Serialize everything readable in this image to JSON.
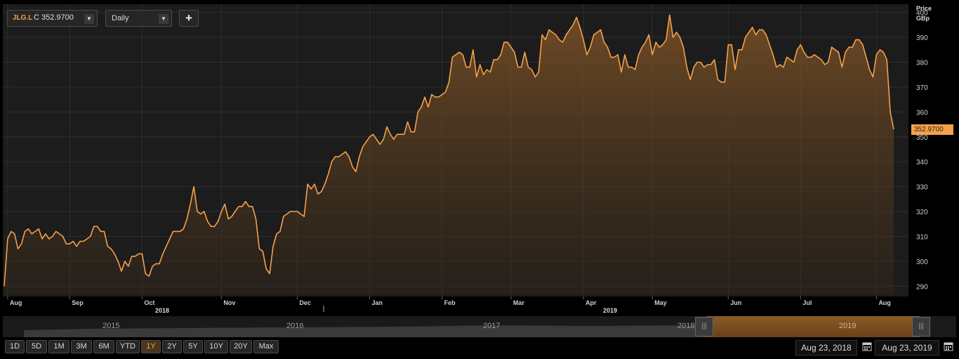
{
  "toolbar": {
    "symbol": "JLG.L",
    "close_prefix": "C",
    "close_value": "352.9700",
    "interval": "Daily",
    "add_label": "+"
  },
  "axis": {
    "price_label": "Price",
    "unit_label": "GBp",
    "year_labels": [
      "2018",
      "2019"
    ]
  },
  "last_price_tag": "352.9700",
  "colors": {
    "line": "#f5a14a",
    "panel": "#1c1c1c",
    "accent": "#f5a14a"
  },
  "navigator": {
    "years": [
      "2015",
      "2016",
      "2017",
      "2018",
      "2019"
    ]
  },
  "ranges": [
    "1D",
    "5D",
    "1M",
    "3M",
    "6M",
    "YTD",
    "1Y",
    "2Y",
    "5Y",
    "10Y",
    "20Y",
    "Max"
  ],
  "active_range": "1Y",
  "dates": {
    "start": "Aug 23, 2018",
    "end": "Aug 23, 2019"
  },
  "chart_data": {
    "type": "area",
    "title": "",
    "xlabel": "",
    "ylabel": "Price GBp",
    "x_tick_labels": [
      "Aug",
      "Sep",
      "Oct",
      "Nov",
      "Dec",
      "Jan",
      "Feb",
      "Mar",
      "Apr",
      "May",
      "Jun",
      "Jul",
      "Aug"
    ],
    "y_ticks": [
      290,
      300,
      310,
      320,
      330,
      340,
      350,
      360,
      370,
      380,
      390,
      400
    ],
    "ylim": [
      286.7,
      403
    ],
    "grid": true,
    "last_value": 352.97,
    "series": [
      {
        "values": [
          290,
          309,
          312,
          311,
          305,
          307,
          312,
          313,
          311,
          312,
          313,
          309,
          311,
          309,
          310,
          312,
          311,
          310,
          307,
          307,
          308,
          306,
          308,
          308,
          309,
          310,
          314,
          314,
          312,
          312,
          306,
          305,
          303,
          300,
          296,
          300,
          298,
          302,
          302,
          303,
          303,
          295,
          294,
          298,
          299,
          299,
          303,
          306,
          309,
          312,
          312,
          312,
          313,
          317,
          323,
          330,
          320,
          319,
          320,
          316,
          314,
          314,
          316,
          320,
          323,
          317,
          318,
          320,
          322,
          322,
          324,
          322,
          322,
          317,
          305,
          304,
          297,
          295,
          306,
          311,
          312,
          318,
          319,
          320,
          320,
          320,
          319,
          318,
          331,
          329,
          331,
          327,
          328,
          331,
          335,
          340,
          342,
          342,
          343,
          344,
          342,
          338,
          336,
          342,
          346,
          348,
          350,
          351,
          349,
          347,
          349,
          354,
          351,
          349,
          351,
          351,
          351,
          356,
          352,
          352,
          360,
          362,
          366,
          362,
          367,
          366,
          366,
          367,
          368,
          372,
          382,
          383,
          384,
          383,
          378,
          378,
          385,
          374,
          379,
          375,
          377,
          376,
          381,
          381,
          383,
          388,
          388,
          386,
          384,
          378,
          378,
          384,
          378,
          377,
          374,
          376,
          391,
          389,
          393,
          392,
          391,
          389,
          388,
          391,
          393,
          395,
          398,
          394,
          389,
          383,
          386,
          391,
          392,
          393,
          388,
          386,
          382,
          382,
          383,
          376,
          383,
          378,
          378,
          377,
          383,
          386,
          388,
          391,
          383,
          388,
          386,
          387,
          389,
          399,
          390,
          392,
          390,
          386,
          378,
          373,
          378,
          380,
          380,
          378,
          379,
          379,
          381,
          373,
          372,
          372,
          387,
          387,
          377,
          385,
          385,
          390,
          392,
          394,
          391,
          393,
          393,
          391,
          387,
          383,
          378,
          379,
          378,
          382,
          381,
          380,
          385,
          387,
          384,
          382,
          382,
          383,
          382,
          381,
          379,
          380,
          386,
          385,
          384,
          378,
          384,
          386,
          386,
          389,
          389,
          387,
          382,
          377,
          374,
          383,
          385,
          384,
          381,
          360,
          353
        ]
      }
    ]
  }
}
